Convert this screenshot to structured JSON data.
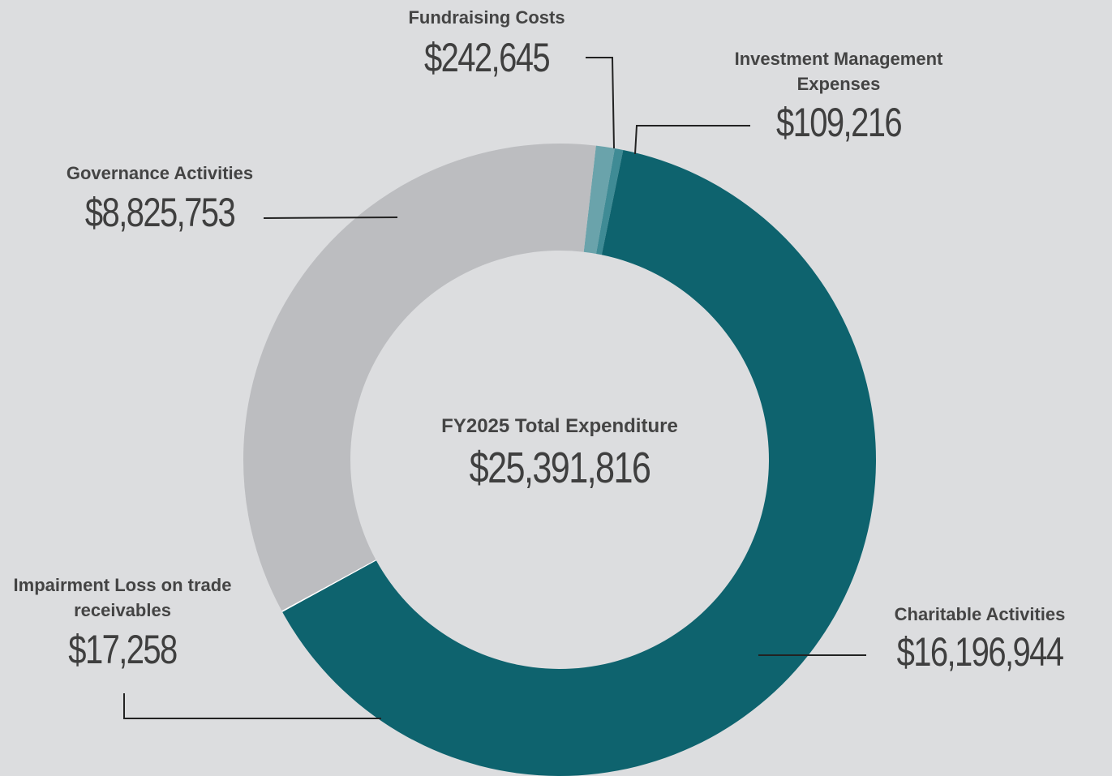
{
  "chart_data": {
    "type": "pie",
    "donut": true,
    "center_title": "FY2025 Total Expenditure",
    "center_value": "$25,391,816",
    "categories": [
      "Fundraising Costs",
      "Investment Management Expenses",
      "Charitable Activities",
      "Impairment Loss on trade receivables",
      "Governance Activities"
    ],
    "values": [
      242645,
      109216,
      16196944,
      17258,
      8825753
    ],
    "value_labels": [
      "$242,645",
      "$109,216",
      "$16,196,944",
      "$17,258",
      "$8,825,753"
    ],
    "colors": [
      "#6aa3ab",
      "#3f8b95",
      "#0e636e",
      "#ffffff",
      "#bcbdc0"
    ]
  }
}
